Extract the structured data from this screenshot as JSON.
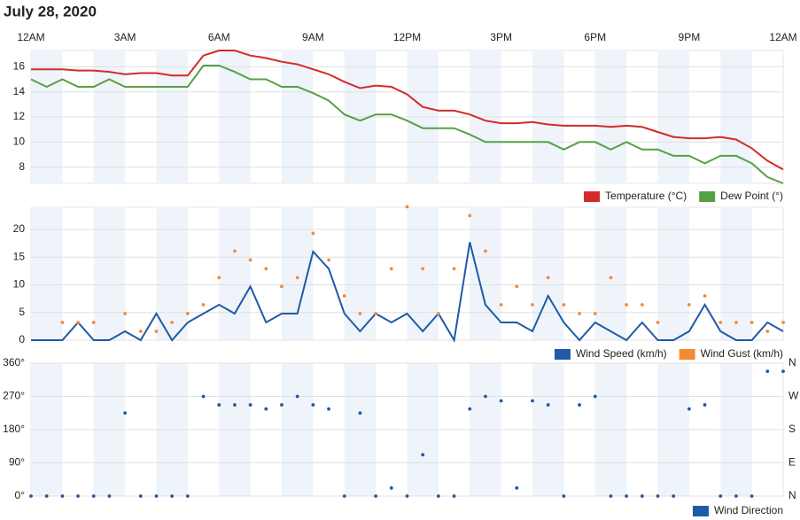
{
  "title": "July 28, 2020",
  "chart_data": [
    {
      "type": "line",
      "x": [
        0,
        0.5,
        1,
        1.5,
        2,
        2.5,
        3,
        3.5,
        4,
        4.5,
        5,
        5.5,
        6,
        6.5,
        7,
        7.5,
        8,
        8.5,
        9,
        9.5,
        10,
        10.5,
        11,
        11.5,
        12,
        12.5,
        13,
        13.5,
        14,
        14.5,
        15,
        15.5,
        16,
        16.5,
        17,
        17.5,
        18,
        18.5,
        19,
        19.5,
        20,
        20.5,
        21,
        21.5,
        22,
        22.5,
        23,
        23.5,
        24
      ],
      "xlim": [
        0,
        24
      ],
      "xticks": [
        {
          "value": 0,
          "label": "12AM"
        },
        {
          "value": 3,
          "label": "3AM"
        },
        {
          "value": 6,
          "label": "6AM"
        },
        {
          "value": 9,
          "label": "9AM"
        },
        {
          "value": 12,
          "label": "12PM"
        },
        {
          "value": 15,
          "label": "3PM"
        },
        {
          "value": 18,
          "label": "6PM"
        },
        {
          "value": 21,
          "label": "9PM"
        },
        {
          "value": 24,
          "label": "12AM"
        }
      ],
      "ylim": [
        6.7,
        17.3
      ],
      "yticks": [
        8,
        10,
        12,
        14,
        16
      ],
      "grid": true,
      "series": [
        {
          "name": "Temperature (°C)",
          "color": "#d42a2a",
          "mode": "line",
          "values": [
            15.8,
            15.8,
            15.8,
            15.7,
            15.7,
            15.6,
            15.4,
            15.5,
            15.5,
            15.3,
            15.3,
            16.9,
            17.3,
            17.3,
            16.9,
            16.7,
            16.4,
            16.2,
            15.8,
            15.4,
            14.8,
            14.3,
            14.5,
            14.4,
            13.8,
            12.8,
            12.5,
            12.5,
            12.2,
            11.7,
            11.5,
            11.5,
            11.6,
            11.4,
            11.3,
            11.3,
            11.3,
            11.2,
            11.3,
            11.2,
            10.8,
            10.4,
            10.3,
            10.3,
            10.4,
            10.2,
            9.5,
            8.5,
            7.8
          ]
        },
        {
          "name": "Dew Point (°)",
          "color": "#58a044",
          "mode": "line",
          "values": [
            15.0,
            14.4,
            15.0,
            14.4,
            14.4,
            15.0,
            14.4,
            14.4,
            14.4,
            14.4,
            14.4,
            16.1,
            16.1,
            15.6,
            15.0,
            15.0,
            14.4,
            14.4,
            13.9,
            13.3,
            12.2,
            11.7,
            12.2,
            12.2,
            11.7,
            11.1,
            11.1,
            11.1,
            10.6,
            10.0,
            10.0,
            10.0,
            10.0,
            10.0,
            9.4,
            10.0,
            10.0,
            9.4,
            10.0,
            9.4,
            9.4,
            8.9,
            8.9,
            8.3,
            8.9,
            8.9,
            8.3,
            7.2,
            6.7
          ]
        }
      ]
    },
    {
      "type": "line",
      "x": [
        0,
        0.5,
        1,
        1.5,
        2,
        2.5,
        3,
        3.5,
        4,
        4.5,
        5,
        5.5,
        6,
        6.5,
        7,
        7.5,
        8,
        8.5,
        9,
        9.5,
        10,
        10.5,
        11,
        11.5,
        12,
        12.5,
        13,
        13.5,
        14,
        14.5,
        15,
        15.5,
        16,
        16.5,
        17,
        17.5,
        18,
        18.5,
        19,
        19.5,
        20,
        20.5,
        21,
        21.5,
        22,
        22.5,
        23,
        23.5,
        24
      ],
      "xlim": [
        0,
        24
      ],
      "ylim": [
        0,
        24
      ],
      "yticks": [
        0,
        5,
        10,
        15,
        20
      ],
      "grid": true,
      "series": [
        {
          "name": "Wind Speed (km/h)",
          "color": "#1f5aa6",
          "mode": "line",
          "values": [
            0,
            0,
            0,
            3.2,
            0,
            0,
            1.6,
            0,
            4.8,
            0,
            3.2,
            4.8,
            6.4,
            4.8,
            9.7,
            3.2,
            4.8,
            4.8,
            16,
            12.9,
            4.8,
            1.6,
            4.8,
            3.2,
            4.8,
            1.6,
            4.8,
            0,
            17.7,
            6.4,
            3.2,
            3.2,
            1.6,
            8,
            3.2,
            0,
            3.2,
            1.6,
            0,
            3.2,
            0,
            0,
            1.6,
            6.4,
            1.6,
            0,
            0,
            3.2,
            1.6
          ]
        },
        {
          "name": "Wind Gust (km/h)",
          "color": "#f58a33",
          "mode": "markers",
          "values": [
            null,
            null,
            3.2,
            3.2,
            3.2,
            null,
            4.8,
            1.6,
            1.6,
            3.2,
            4.8,
            6.4,
            11.3,
            16.1,
            14.5,
            12.9,
            9.7,
            11.3,
            19.3,
            14.5,
            8,
            4.8,
            4.8,
            12.9,
            24.1,
            12.9,
            4.8,
            12.9,
            22.5,
            16.1,
            6.4,
            9.7,
            6.4,
            11.3,
            6.4,
            4.8,
            4.8,
            11.3,
            6.4,
            6.4,
            3.2,
            null,
            6.4,
            8,
            3.2,
            3.2,
            3.2,
            1.6,
            3.2
          ]
        }
      ]
    },
    {
      "type": "scatter",
      "x": [
        0,
        0.5,
        1,
        1.5,
        2,
        2.5,
        3,
        3.5,
        4,
        4.5,
        5,
        5.5,
        6,
        6.5,
        7,
        7.5,
        8,
        8.5,
        9,
        9.5,
        10,
        10.5,
        11,
        11.5,
        12,
        12.5,
        13,
        13.5,
        14,
        14.5,
        15,
        15.5,
        16,
        16.5,
        17,
        17.5,
        18,
        18.5,
        19,
        19.5,
        20,
        20.5,
        21,
        21.5,
        22,
        22.5,
        23,
        23.5,
        24
      ],
      "xlim": [
        0,
        24
      ],
      "ylim": [
        0,
        360
      ],
      "yticks": [
        {
          "value": 0,
          "label": "0°"
        },
        {
          "value": 90,
          "label": "90°"
        },
        {
          "value": 180,
          "label": "180°"
        },
        {
          "value": 270,
          "label": "270°"
        },
        {
          "value": 360,
          "label": "360°"
        }
      ],
      "y2ticks": [
        {
          "value": 0,
          "label": "N"
        },
        {
          "value": 90,
          "label": "E"
        },
        {
          "value": 180,
          "label": "S"
        },
        {
          "value": 270,
          "label": "W"
        },
        {
          "value": 360,
          "label": "N"
        }
      ],
      "grid": true,
      "series": [
        {
          "name": "Wind Direction",
          "color": "#1f5aa6",
          "mode": "markers",
          "values": [
            0,
            0,
            0,
            0,
            0,
            0,
            225,
            0,
            0,
            0,
            0,
            270,
            247,
            247,
            247,
            236,
            247,
            270,
            247,
            236,
            0,
            225,
            0,
            22,
            0,
            112,
            0,
            0,
            236,
            270,
            258,
            22,
            258,
            247,
            0,
            247,
            270,
            0,
            0,
            0,
            0,
            0,
            236,
            247,
            0,
            0,
            0,
            338,
            338
          ]
        }
      ]
    }
  ]
}
